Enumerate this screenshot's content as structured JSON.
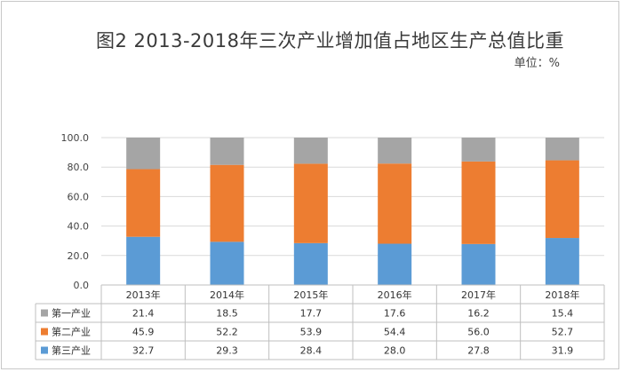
{
  "title": "图2  2013-2018年三次产业增加值占地区生产总值比重",
  "unit_label": "单位：%",
  "chart_data": {
    "type": "bar",
    "stacked": true,
    "title": "图2  2013-2018年三次产业增加值占地区生产总值比重",
    "ylabel": "",
    "xlabel": "",
    "ylim": [
      0,
      100
    ],
    "yticks": [
      "0.0",
      "20.0",
      "40.0",
      "60.0",
      "80.0",
      "100.0"
    ],
    "categories": [
      "2013年",
      "2014年",
      "2015年",
      "2016年",
      "2017年",
      "2018年"
    ],
    "series": [
      {
        "name": "第三产业",
        "color": "#5b9bd5",
        "values": [
          32.7,
          29.3,
          28.4,
          28.0,
          27.8,
          31.9
        ]
      },
      {
        "name": "第二产业",
        "color": "#ed7d31",
        "values": [
          45.9,
          52.2,
          53.9,
          54.4,
          56.0,
          52.7
        ]
      },
      {
        "name": "第一产业",
        "color": "#a5a5a5",
        "values": [
          21.4,
          18.5,
          17.7,
          17.6,
          16.2,
          15.4
        ]
      }
    ],
    "table_rows": [
      {
        "name": "第一产业",
        "color": "#a5a5a5",
        "values": [
          "21.4",
          "18.5",
          "17.7",
          "17.6",
          "16.2",
          "15.4"
        ]
      },
      {
        "name": "第二产业",
        "color": "#ed7d31",
        "values": [
          "45.9",
          "52.2",
          "53.9",
          "54.4",
          "56.0",
          "52.7"
        ]
      },
      {
        "name": "第三产业",
        "color": "#5b9bd5",
        "values": [
          "32.7",
          "29.3",
          "28.4",
          "28.0",
          "27.8",
          "31.9"
        ]
      }
    ],
    "grid": true,
    "legend": "table"
  }
}
